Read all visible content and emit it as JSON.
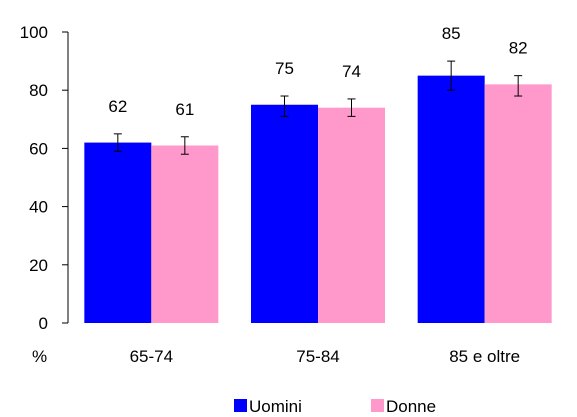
{
  "chart_data": {
    "type": "bar",
    "categories": [
      "65-74",
      "75-84",
      "85 e oltre"
    ],
    "series": [
      {
        "name": "Uomini",
        "color": "#0000ff",
        "values": [
          62,
          75,
          85
        ],
        "error_low": [
          59,
          71,
          80
        ],
        "error_high": [
          65,
          78,
          90
        ]
      },
      {
        "name": "Donne",
        "color": "#ff99cc",
        "values": [
          61,
          74,
          82
        ],
        "error_low": [
          58,
          71,
          78
        ],
        "error_high": [
          64,
          77,
          85
        ]
      }
    ],
    "data_labels": [
      [
        "62",
        "75",
        "85"
      ],
      [
        "61",
        "74",
        "82"
      ]
    ],
    "ylim": [
      0,
      100
    ],
    "yticks": [
      0,
      20,
      40,
      60,
      80,
      100
    ],
    "ylabel": "%",
    "grid": false,
    "legend_position": "bottom"
  }
}
